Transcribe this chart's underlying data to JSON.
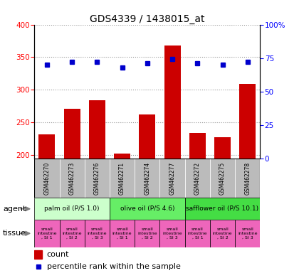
{
  "title": "GDS4339 / 1438015_at",
  "samples": [
    "GSM462270",
    "GSM462273",
    "GSM462276",
    "GSM462271",
    "GSM462274",
    "GSM462277",
    "GSM462272",
    "GSM462275",
    "GSM462278"
  ],
  "counts": [
    232,
    271,
    284,
    202,
    262,
    368,
    234,
    227,
    309
  ],
  "percentiles": [
    70,
    72,
    72,
    68,
    71,
    74,
    71,
    70,
    72
  ],
  "ylim_left": [
    195,
    400
  ],
  "ylim_right": [
    0,
    100
  ],
  "yticks_left": [
    200,
    250,
    300,
    350,
    400
  ],
  "yticks_right": [
    0,
    25,
    50,
    75,
    100
  ],
  "agent_groups": [
    {
      "label": "palm oil (P/S 1.0)",
      "start": 0,
      "end": 3,
      "color": "#CCFFCC"
    },
    {
      "label": "olive oil (P/S 4.6)",
      "start": 3,
      "end": 6,
      "color": "#66EE66"
    },
    {
      "label": "safflower oil (P/S 10.1)",
      "start": 6,
      "end": 9,
      "color": "#44DD44"
    }
  ],
  "tissues": [
    "small\nintestine\n, SI 1",
    "small\nintestine\n, SI 2",
    "small\nintestine\n, SI 3",
    "small\nintestine\n, SI 1",
    "small\nintestine\n, SI 2",
    "small\nintestine\n, SI 3",
    "small\nintestine\n, SI 1",
    "small\nintestine\n, SI 2",
    "small\nintestine\n, SI 3"
  ],
  "tissue_color": "#EE66BB",
  "bar_color": "#CC0000",
  "dot_color": "#0000CC",
  "sample_bg_color": "#BBBBBB",
  "agent_label": "agent",
  "tissue_label": "tissue",
  "legend_count": "count",
  "legend_percentile": "percentile rank within the sample"
}
